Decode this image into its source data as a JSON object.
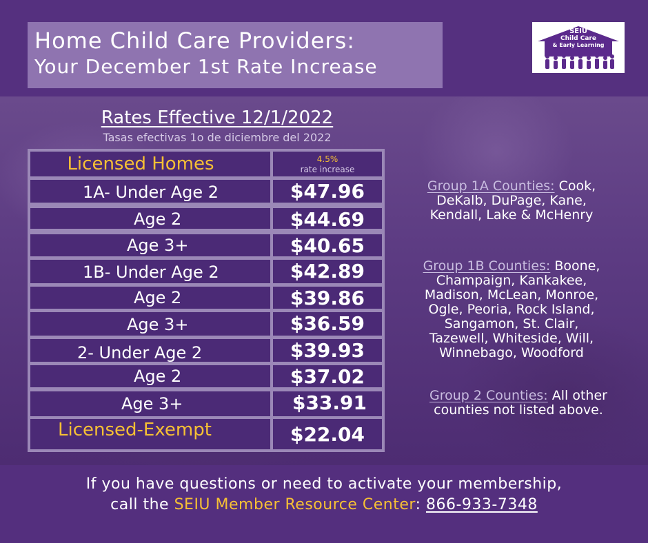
{
  "title": {
    "line1": "Home Child Care Providers:",
    "line2": "Your December 1st Rate Increase"
  },
  "logo": {
    "line1": "SEIU",
    "line2": "Child Care",
    "line3": "& Early Learning"
  },
  "rates_heading": "Rates Effective 12/1/2022",
  "rates_subheading": "Tasas efectivas 1o de diciembre del 2022",
  "table": {
    "header_label": "Licensed Homes",
    "header_pct": "4.5%",
    "header_note": "rate increase",
    "rows": [
      {
        "label": "1A- Under Age 2",
        "value": "$47.96"
      },
      {
        "label": "Age 2",
        "value": "$44.69"
      },
      {
        "label": "Age 3+",
        "value": "$40.65"
      },
      {
        "label": "1B- Under Age 2",
        "value": "$42.89"
      },
      {
        "label": "Age 2",
        "value": "$39.86"
      },
      {
        "label": "Age 3+",
        "value": "$36.59"
      },
      {
        "label": "2- Under Age 2",
        "value": "$39.93"
      },
      {
        "label": "Age 2",
        "value": "$37.02"
      },
      {
        "label": "Age 3+",
        "value": "$33.91"
      },
      {
        "label": "Licensed-Exempt",
        "value": "$22.04"
      }
    ]
  },
  "counties": {
    "group1a_heading": "Group 1A Counties:",
    "group1a_lines": [
      " Cook,",
      "DeKalb, DuPage, Kane,",
      "Kendall, Lake & McHenry"
    ],
    "group1b_heading": "Group 1B Counties:",
    "group1b_lines": [
      " Boone,",
      "Champaign, Kankakee,",
      "Madison, McLean, Monroe,",
      "Ogle, Peoria, Rock Island,",
      "Sangamon, St. Clair,",
      "Tazewell, Whiteside, Will,",
      "Winnebago, Woodford"
    ],
    "group2_heading": "Group 2 Counties:",
    "group2_lines": [
      " All other",
      "counties not listed above."
    ]
  },
  "footer": {
    "line1": "If you have questions or need to activate your membership,",
    "line2_prefix": "call the ",
    "resource_center": "SEIU Member Resource Center",
    "line2_sep": ": ",
    "phone": "866-933-7348"
  },
  "colors": {
    "background": "#55307f",
    "title_box": "#8f74b0",
    "table_cell": "#4b2a76",
    "table_frame": "#9b88b7",
    "accent_gold": "#f6c034",
    "county_heading": "#c9bde0"
  }
}
